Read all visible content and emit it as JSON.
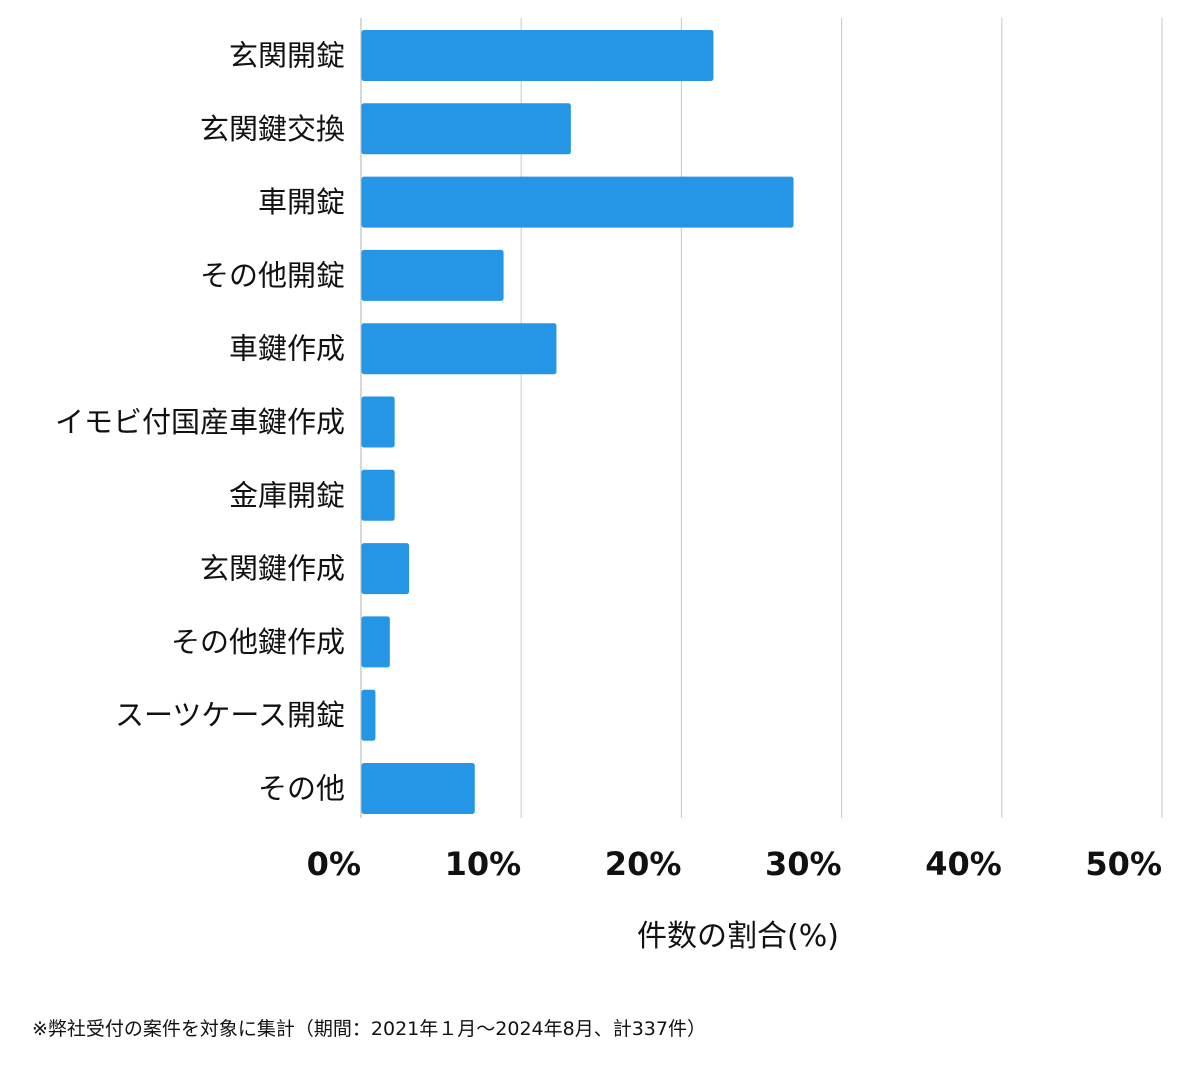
{
  "chart_data": {
    "type": "bar",
    "orientation": "horizontal",
    "categories": [
      "玄関開錠",
      "玄関鍵交換",
      "車開錠",
      "その他開錠",
      "車鍵作成",
      "イモビ付国産車鍵作成",
      "金庫開錠",
      "玄関鍵作成",
      "その他鍵作成",
      "スーツケース開錠",
      "その他"
    ],
    "values": [
      22.0,
      13.1,
      27.0,
      8.9,
      12.2,
      2.1,
      2.1,
      3.0,
      1.8,
      0.9,
      7.1
    ],
    "xlim": [
      0,
      50
    ],
    "xticks": [
      0,
      10,
      20,
      30,
      40,
      50
    ],
    "xtick_labels": [
      "0%",
      "10%",
      "20%",
      "30%",
      "40%",
      "50%"
    ],
    "xlabel": "件数の割合(%)",
    "ylabel": "",
    "title": "",
    "grid": "vertical",
    "bar_color": "#2595e6",
    "grid_color": "#d0d0d0",
    "footnote": "※弊社受付の案件を対象に集計（期間：2021年１月〜2024年8月、計337件）"
  }
}
